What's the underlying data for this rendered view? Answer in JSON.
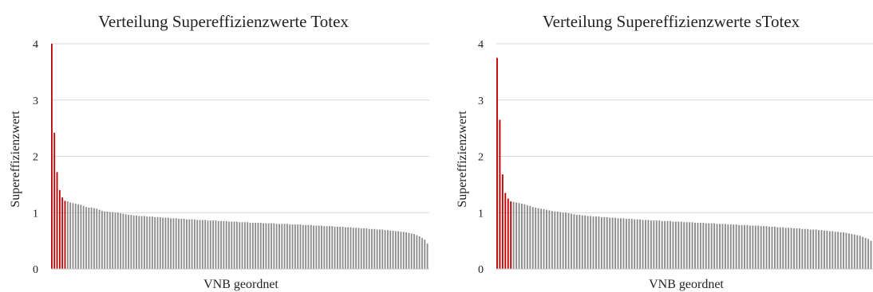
{
  "colors": {
    "highlight": "#c00000",
    "bar": "#8c8c8c",
    "grid": "#d9d9d9"
  },
  "chart_data": [
    {
      "type": "bar",
      "title": "Verteilung Supereffizienzwerte Totex",
      "xlabel": "VNB geordnet",
      "ylabel": "Supereffizienzwert",
      "ylim": [
        0,
        4
      ],
      "yticks": [
        "0",
        "1",
        "2",
        "3",
        "4"
      ],
      "grid": true,
      "sorted": "descending",
      "highlight_color": "#c00000",
      "bar_color": "#8c8c8c",
      "highlighted_count": 6,
      "values": [
        4.0,
        2.42,
        1.72,
        1.4,
        1.27,
        1.21,
        1.2,
        1.18,
        1.17,
        1.16,
        1.15,
        1.14,
        1.12,
        1.1,
        1.09,
        1.09,
        1.08,
        1.07,
        1.05,
        1.03,
        1.02,
        1.02,
        1.01,
        1.01,
        1.0,
        1.0,
        0.99,
        0.98,
        0.97,
        0.96,
        0.96,
        0.95,
        0.95,
        0.94,
        0.94,
        0.94,
        0.93,
        0.93,
        0.93,
        0.92,
        0.92,
        0.92,
        0.91,
        0.91,
        0.91,
        0.9,
        0.9,
        0.9,
        0.89,
        0.89,
        0.89,
        0.88,
        0.88,
        0.88,
        0.88,
        0.87,
        0.87,
        0.87,
        0.87,
        0.86,
        0.86,
        0.86,
        0.86,
        0.85,
        0.85,
        0.85,
        0.85,
        0.84,
        0.84,
        0.84,
        0.84,
        0.83,
        0.83,
        0.83,
        0.83,
        0.82,
        0.82,
        0.82,
        0.82,
        0.82,
        0.81,
        0.81,
        0.81,
        0.81,
        0.81,
        0.8,
        0.8,
        0.8,
        0.8,
        0.8,
        0.79,
        0.79,
        0.79,
        0.79,
        0.79,
        0.78,
        0.78,
        0.78,
        0.78,
        0.77,
        0.77,
        0.77,
        0.77,
        0.76,
        0.76,
        0.76,
        0.76,
        0.75,
        0.75,
        0.75,
        0.75,
        0.74,
        0.74,
        0.74,
        0.73,
        0.73,
        0.73,
        0.72,
        0.72,
        0.72,
        0.71,
        0.71,
        0.71,
        0.7,
        0.7,
        0.7,
        0.69,
        0.69,
        0.68,
        0.68,
        0.67,
        0.67,
        0.66,
        0.66,
        0.65,
        0.64,
        0.63,
        0.62,
        0.6,
        0.58,
        0.55,
        0.52,
        0.45
      ]
    },
    {
      "type": "bar",
      "title": "Verteilung Supereffizienzwerte sTotex",
      "xlabel": "VNB geordnet",
      "ylabel": "Supereffizienzwert",
      "ylim": [
        0,
        4
      ],
      "yticks": [
        "0",
        "1",
        "2",
        "3",
        "4"
      ],
      "grid": true,
      "sorted": "descending",
      "highlight_color": "#c00000",
      "bar_color": "#8c8c8c",
      "highlighted_count": 6,
      "values": [
        3.75,
        2.65,
        1.68,
        1.35,
        1.25,
        1.2,
        1.19,
        1.18,
        1.17,
        1.16,
        1.15,
        1.13,
        1.12,
        1.1,
        1.09,
        1.08,
        1.07,
        1.06,
        1.05,
        1.04,
        1.03,
        1.02,
        1.02,
        1.01,
        1.0,
        1.0,
        0.99,
        0.98,
        0.97,
        0.96,
        0.96,
        0.95,
        0.95,
        0.94,
        0.94,
        0.93,
        0.93,
        0.93,
        0.92,
        0.92,
        0.92,
        0.91,
        0.91,
        0.91,
        0.9,
        0.9,
        0.9,
        0.89,
        0.89,
        0.89,
        0.88,
        0.88,
        0.88,
        0.87,
        0.87,
        0.87,
        0.86,
        0.86,
        0.86,
        0.86,
        0.85,
        0.85,
        0.85,
        0.85,
        0.84,
        0.84,
        0.84,
        0.84,
        0.83,
        0.83,
        0.83,
        0.83,
        0.82,
        0.82,
        0.82,
        0.82,
        0.81,
        0.81,
        0.81,
        0.81,
        0.8,
        0.8,
        0.8,
        0.8,
        0.79,
        0.79,
        0.79,
        0.79,
        0.78,
        0.78,
        0.78,
        0.78,
        0.77,
        0.77,
        0.77,
        0.77,
        0.76,
        0.76,
        0.76,
        0.75,
        0.75,
        0.75,
        0.74,
        0.74,
        0.74,
        0.73,
        0.73,
        0.73,
        0.72,
        0.72,
        0.72,
        0.71,
        0.71,
        0.71,
        0.7,
        0.7,
        0.7,
        0.69,
        0.69,
        0.68,
        0.68,
        0.67,
        0.67,
        0.66,
        0.66,
        0.65,
        0.65,
        0.64,
        0.63,
        0.62,
        0.61,
        0.6,
        0.59,
        0.57,
        0.55,
        0.53,
        0.5
      ]
    }
  ]
}
